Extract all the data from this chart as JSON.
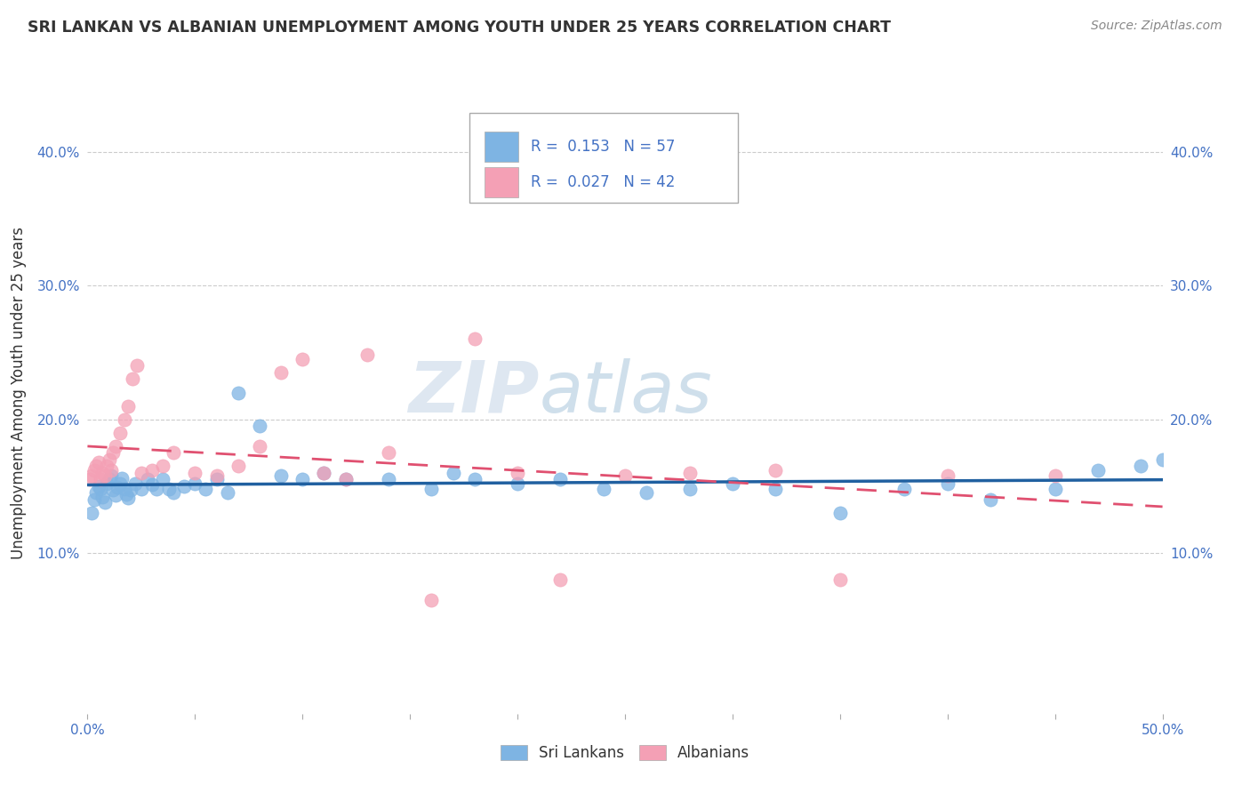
{
  "title": "SRI LANKAN VS ALBANIAN UNEMPLOYMENT AMONG YOUTH UNDER 25 YEARS CORRELATION CHART",
  "source": "Source: ZipAtlas.com",
  "ylabel": "Unemployment Among Youth under 25 years",
  "xlim": [
    0.0,
    0.5
  ],
  "ylim": [
    -0.02,
    0.46
  ],
  "ytick_positions": [
    0.1,
    0.2,
    0.3,
    0.4
  ],
  "ytick_labels": [
    "10.0%",
    "20.0%",
    "30.0%",
    "40.0%"
  ],
  "sri_lanka_color": "#7EB4E3",
  "albanian_color": "#F4A0B5",
  "sri_lanka_line_color": "#2060A0",
  "albanian_line_color": "#E05070",
  "legend_r1": "0.153",
  "legend_n1": "57",
  "legend_r2": "0.027",
  "legend_n2": "42",
  "watermark_zip": "ZIP",
  "watermark_atlas": "atlas",
  "sri_lanka_x": [
    0.002,
    0.003,
    0.004,
    0.005,
    0.006,
    0.007,
    0.008,
    0.009,
    0.01,
    0.011,
    0.012,
    0.013,
    0.014,
    0.015,
    0.016,
    0.017,
    0.018,
    0.019,
    0.02,
    0.022,
    0.025,
    0.028,
    0.03,
    0.032,
    0.035,
    0.038,
    0.04,
    0.045,
    0.05,
    0.055,
    0.06,
    0.065,
    0.07,
    0.08,
    0.09,
    0.1,
    0.11,
    0.12,
    0.14,
    0.16,
    0.17,
    0.18,
    0.2,
    0.22,
    0.24,
    0.26,
    0.28,
    0.3,
    0.32,
    0.35,
    0.38,
    0.4,
    0.42,
    0.45,
    0.47,
    0.49,
    0.5
  ],
  "sri_lanka_y": [
    0.13,
    0.14,
    0.145,
    0.15,
    0.148,
    0.142,
    0.138,
    0.152,
    0.155,
    0.158,
    0.147,
    0.143,
    0.149,
    0.152,
    0.156,
    0.148,
    0.144,
    0.141,
    0.147,
    0.152,
    0.148,
    0.155,
    0.151,
    0.148,
    0.155,
    0.148,
    0.145,
    0.15,
    0.152,
    0.148,
    0.155,
    0.145,
    0.22,
    0.195,
    0.158,
    0.155,
    0.16,
    0.155,
    0.155,
    0.148,
    0.16,
    0.155,
    0.152,
    0.155,
    0.148,
    0.145,
    0.148,
    0.152,
    0.148,
    0.13,
    0.148,
    0.152,
    0.14,
    0.148,
    0.162,
    0.165,
    0.17
  ],
  "albanian_x": [
    0.001,
    0.002,
    0.003,
    0.004,
    0.005,
    0.006,
    0.007,
    0.008,
    0.009,
    0.01,
    0.011,
    0.012,
    0.013,
    0.015,
    0.017,
    0.019,
    0.021,
    0.023,
    0.025,
    0.03,
    0.035,
    0.04,
    0.05,
    0.06,
    0.07,
    0.08,
    0.09,
    0.1,
    0.11,
    0.12,
    0.13,
    0.14,
    0.16,
    0.18,
    0.2,
    0.22,
    0.25,
    0.28,
    0.32,
    0.35,
    0.4,
    0.45
  ],
  "albanian_y": [
    0.155,
    0.158,
    0.162,
    0.165,
    0.168,
    0.155,
    0.16,
    0.158,
    0.165,
    0.17,
    0.162,
    0.175,
    0.18,
    0.19,
    0.2,
    0.21,
    0.23,
    0.24,
    0.16,
    0.162,
    0.165,
    0.175,
    0.16,
    0.158,
    0.165,
    0.18,
    0.235,
    0.245,
    0.16,
    0.155,
    0.248,
    0.175,
    0.065,
    0.26,
    0.16,
    0.08,
    0.158,
    0.16,
    0.162,
    0.08,
    0.158,
    0.158
  ]
}
